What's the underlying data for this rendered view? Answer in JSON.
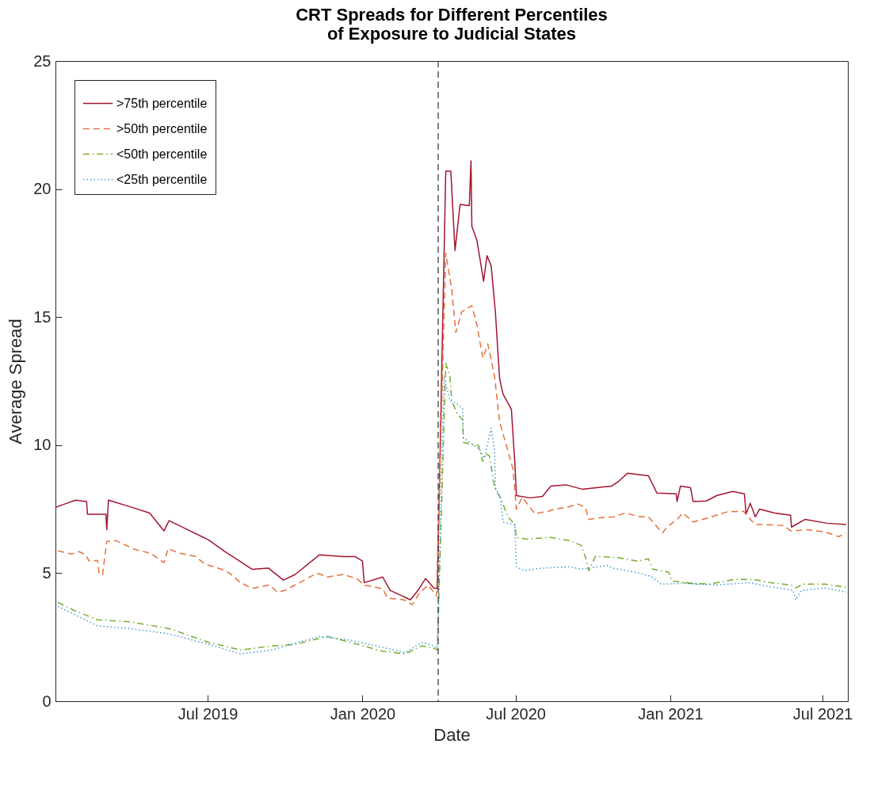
{
  "chart_data": {
    "type": "line",
    "title": "CRT Spreads for Different Percentiles\nof Exposure to Judicial States",
    "xlabel": "Date",
    "ylabel": "Average Spread",
    "xlim": [
      "2019-01-01",
      "2021-07-31"
    ],
    "ylim": [
      0,
      25
    ],
    "yticks": [
      0,
      5,
      10,
      15,
      20,
      25
    ],
    "xticks": [
      {
        "value": "2019-07-01",
        "label": "Jul 2019"
      },
      {
        "value": "2020-01-01",
        "label": "Jan 2020"
      },
      {
        "value": "2020-07-01",
        "label": "Jul 2020"
      },
      {
        "value": "2021-01-01",
        "label": "Jan 2021"
      },
      {
        "value": "2021-07-01",
        "label": "Jul 2021"
      }
    ],
    "legend": "top left",
    "ref_lines": [
      {
        "axis": "x",
        "value": "2020-03-31",
        "color": "#404040",
        "line_style": "dashed"
      }
    ],
    "series": [
      {
        "name": ">75th percentile",
        "color": "#a2142f",
        "line_style": "solid",
        "x": [
          "2019-01-01",
          "2019-01-12",
          "2019-01-25",
          "2019-02-07",
          "2019-02-08",
          "2019-03-02",
          "2019-03-03",
          "2019-03-05",
          "2019-03-30",
          "2019-04-23",
          "2019-05-10",
          "2019-05-16",
          "2019-06-04",
          "2019-07-02",
          "2019-07-21",
          "2019-08-09",
          "2019-08-23",
          "2019-09-11",
          "2019-09-29",
          "2019-10-13",
          "2019-11-11",
          "2019-12-09",
          "2019-12-23",
          "2020-01-01",
          "2020-01-03",
          "2020-01-25",
          "2020-02-03",
          "2020-02-27",
          "2020-03-07",
          "2020-03-16",
          "2020-03-26",
          "2020-03-30",
          "2020-04-09",
          "2020-04-15",
          "2020-04-20",
          "2020-04-26",
          "2020-05-07",
          "2020-05-09",
          "2020-05-10",
          "2020-05-16",
          "2020-05-24",
          "2020-05-28",
          "2020-06-02",
          "2020-06-07",
          "2020-06-12",
          "2020-06-16",
          "2020-06-26",
          "2020-06-30",
          "2020-07-02",
          "2020-07-18",
          "2020-08-02",
          "2020-08-12",
          "2020-08-30",
          "2020-09-18",
          "2020-10-23",
          "2020-11-01",
          "2020-11-11",
          "2020-12-06",
          "2020-12-16",
          "2021-01-08",
          "2021-01-09",
          "2021-01-13",
          "2021-01-25",
          "2021-01-28",
          "2021-02-13",
          "2021-02-25",
          "2021-03-16",
          "2021-03-30",
          "2021-04-01",
          "2021-04-06",
          "2021-04-12",
          "2021-04-17",
          "2021-05-05",
          "2021-05-24",
          "2021-05-25",
          "2021-06-10",
          "2021-07-06",
          "2021-07-29"
        ],
        "values": [
          7.57,
          7.7,
          7.85,
          7.8,
          7.3,
          7.3,
          6.7,
          7.85,
          7.6,
          7.35,
          6.65,
          7.05,
          6.75,
          6.3,
          5.85,
          5.45,
          5.15,
          5.2,
          4.73,
          4.95,
          5.72,
          5.65,
          5.65,
          5.47,
          4.63,
          4.85,
          4.33,
          3.96,
          4.33,
          4.79,
          4.42,
          4.4,
          20.7,
          20.7,
          17.6,
          19.4,
          19.35,
          21.1,
          18.55,
          18.0,
          16.4,
          17.4,
          17.0,
          15.2,
          12.6,
          12.0,
          11.4,
          9.37,
          8.03,
          7.94,
          8.0,
          8.4,
          8.45,
          8.28,
          8.4,
          8.6,
          8.9,
          8.8,
          8.13,
          8.1,
          7.8,
          8.4,
          8.34,
          7.8,
          7.82,
          8.03,
          8.19,
          8.1,
          7.32,
          7.73,
          7.2,
          7.5,
          7.35,
          7.26,
          6.8,
          7.1,
          6.95,
          6.9
        ]
      },
      {
        "name": ">50th percentile",
        "color": "#e4723f",
        "line_style": "dashed",
        "x": [
          "2019-01-04",
          "2019-01-20",
          "2019-01-29",
          "2019-02-06",
          "2019-02-10",
          "2019-02-20",
          "2019-02-22",
          "2019-02-26",
          "2019-03-03",
          "2019-03-14",
          "2019-03-24",
          "2019-04-05",
          "2019-04-24",
          "2019-05-10",
          "2019-05-15",
          "2019-05-28",
          "2019-06-16",
          "2019-06-28",
          "2019-07-17",
          "2019-07-27",
          "2019-08-09",
          "2019-08-22",
          "2019-08-25",
          "2019-09-12",
          "2019-09-22",
          "2019-10-01",
          "2019-11-08",
          "2019-11-20",
          "2019-12-09",
          "2019-12-25",
          "2020-01-03",
          "2020-01-25",
          "2020-01-31",
          "2020-02-19",
          "2020-02-29",
          "2020-03-09",
          "2020-03-19",
          "2020-03-29",
          "2020-04-09",
          "2020-04-16",
          "2020-04-18",
          "2020-04-21",
          "2020-04-28",
          "2020-05-10",
          "2020-05-16",
          "2020-05-23",
          "2020-05-29",
          "2020-06-06",
          "2020-06-12",
          "2020-06-20",
          "2020-06-28",
          "2020-07-02",
          "2020-07-09",
          "2020-07-18",
          "2020-07-24",
          "2020-08-09",
          "2020-08-16",
          "2020-08-31",
          "2020-09-13",
          "2020-09-22",
          "2020-09-26",
          "2020-10-11",
          "2020-10-26",
          "2020-11-08",
          "2020-11-27",
          "2020-12-06",
          "2020-12-18",
          "2020-12-23",
          "2020-12-28",
          "2021-01-09",
          "2021-01-16",
          "2021-01-28",
          "2021-02-16",
          "2021-03-10",
          "2021-03-29",
          "2021-04-04",
          "2021-04-12",
          "2021-04-22",
          "2021-05-15",
          "2021-05-25",
          "2021-06-12",
          "2021-07-04",
          "2021-07-20",
          "2021-07-29"
        ],
        "values": [
          5.87,
          5.75,
          5.84,
          5.72,
          5.47,
          5.5,
          4.95,
          4.95,
          6.24,
          6.27,
          6.12,
          5.93,
          5.78,
          5.41,
          5.96,
          5.78,
          5.66,
          5.35,
          5.16,
          5.0,
          4.63,
          4.42,
          4.42,
          4.54,
          4.26,
          4.33,
          5.0,
          4.85,
          4.95,
          4.79,
          4.54,
          4.39,
          4.02,
          3.96,
          3.77,
          4.23,
          4.54,
          4.11,
          17.5,
          16.1,
          15.4,
          14.4,
          15.2,
          15.45,
          14.7,
          13.4,
          13.95,
          12.7,
          10.9,
          10.0,
          9.05,
          7.5,
          7.97,
          7.57,
          7.32,
          7.42,
          7.5,
          7.57,
          7.7,
          7.57,
          7.1,
          7.17,
          7.2,
          7.35,
          7.2,
          7.2,
          6.74,
          6.58,
          6.8,
          7.1,
          7.35,
          7.0,
          7.17,
          7.4,
          7.42,
          7.17,
          6.9,
          6.9,
          6.86,
          6.64,
          6.7,
          6.61,
          6.43,
          6.55
        ]
      },
      {
        "name": "<50th percentile",
        "color": "#77ac30",
        "line_style": "dashdot",
        "x": [
          "2019-01-04",
          "2019-01-23",
          "2019-02-20",
          "2019-03-30",
          "2019-05-16",
          "2019-07-02",
          "2019-08-09",
          "2019-09-15",
          "2019-10-13",
          "2019-11-20",
          "2019-12-18",
          "2020-01-25",
          "2020-02-21",
          "2020-03-11",
          "2020-03-26",
          "2020-03-30",
          "2020-04-09",
          "2020-04-14",
          "2020-04-16",
          "2020-04-23",
          "2020-04-29",
          "2020-04-30",
          "2020-05-18",
          "2020-05-23",
          "2020-05-26",
          "2020-05-31",
          "2020-06-06",
          "2020-06-13",
          "2020-06-22",
          "2020-06-30",
          "2020-07-02",
          "2020-07-14",
          "2020-08-12",
          "2020-09-03",
          "2020-09-17",
          "2020-09-22",
          "2020-09-26",
          "2020-10-04",
          "2020-11-01",
          "2020-11-23",
          "2020-12-06",
          "2020-12-11",
          "2020-12-30",
          "2021-01-03",
          "2021-02-02",
          "2021-01-16",
          "2021-02-16",
          "2021-03-19",
          "2021-04-10",
          "2021-04-29",
          "2021-05-24",
          "2021-05-30",
          "2021-06-08",
          "2021-07-04",
          "2021-07-29"
        ],
        "values": [
          3.86,
          3.55,
          3.18,
          3.1,
          2.84,
          2.3,
          2.0,
          2.16,
          2.22,
          2.53,
          2.3,
          1.95,
          1.85,
          2.16,
          2.07,
          2.0,
          13.2,
          12.67,
          11.74,
          11.2,
          11.0,
          10.1,
          9.98,
          9.36,
          9.67,
          9.58,
          8.34,
          7.94,
          7.2,
          6.9,
          6.4,
          6.33,
          6.4,
          6.27,
          6.09,
          5.62,
          5.1,
          5.66,
          5.6,
          5.47,
          5.56,
          5.16,
          5.04,
          4.7,
          4.57,
          4.63,
          4.57,
          4.76,
          4.76,
          4.63,
          4.54,
          4.42,
          4.57,
          4.57,
          4.45
        ]
      },
      {
        "name": "<25th percentile",
        "color": "#3d9ad6",
        "line_style": "dotted",
        "x": [
          "2019-01-04",
          "2019-01-23",
          "2019-02-20",
          "2019-03-30",
          "2019-05-16",
          "2019-07-02",
          "2019-08-09",
          "2019-09-15",
          "2019-11-11",
          "2019-12-18",
          "2020-01-25",
          "2020-02-21",
          "2020-03-11",
          "2020-03-26",
          "2020-03-30",
          "2020-04-07",
          "2020-04-14",
          "2020-04-21",
          "2020-04-29",
          "2020-04-30",
          "2020-05-19",
          "2020-05-25",
          "2020-06-02",
          "2020-06-06",
          "2020-06-07",
          "2020-06-13",
          "2020-06-16",
          "2020-06-30",
          "2020-07-02",
          "2020-07-11",
          "2020-07-30",
          "2020-09-03",
          "2020-09-17",
          "2020-10-18",
          "2020-10-26",
          "2020-11-20",
          "2020-12-09",
          "2020-12-21",
          "2021-01-16",
          "2021-02-27",
          "2021-04-04",
          "2021-04-29",
          "2021-05-27",
          "2021-05-30",
          "2021-06-06",
          "2021-07-04",
          "2021-07-29"
        ],
        "values": [
          3.7,
          3.4,
          2.94,
          2.84,
          2.63,
          2.22,
          1.85,
          2.0,
          2.53,
          2.38,
          2.1,
          1.9,
          2.3,
          2.16,
          2.07,
          12.67,
          11.74,
          11.65,
          11.43,
          10.3,
          9.83,
          9.49,
          10.66,
          9.8,
          8.34,
          7.94,
          7.0,
          6.9,
          5.25,
          5.1,
          5.19,
          5.25,
          5.16,
          5.3,
          5.19,
          5.04,
          4.88,
          4.57,
          4.6,
          4.54,
          4.63,
          4.48,
          4.33,
          3.96,
          4.33,
          4.42,
          4.26
        ]
      }
    ]
  }
}
